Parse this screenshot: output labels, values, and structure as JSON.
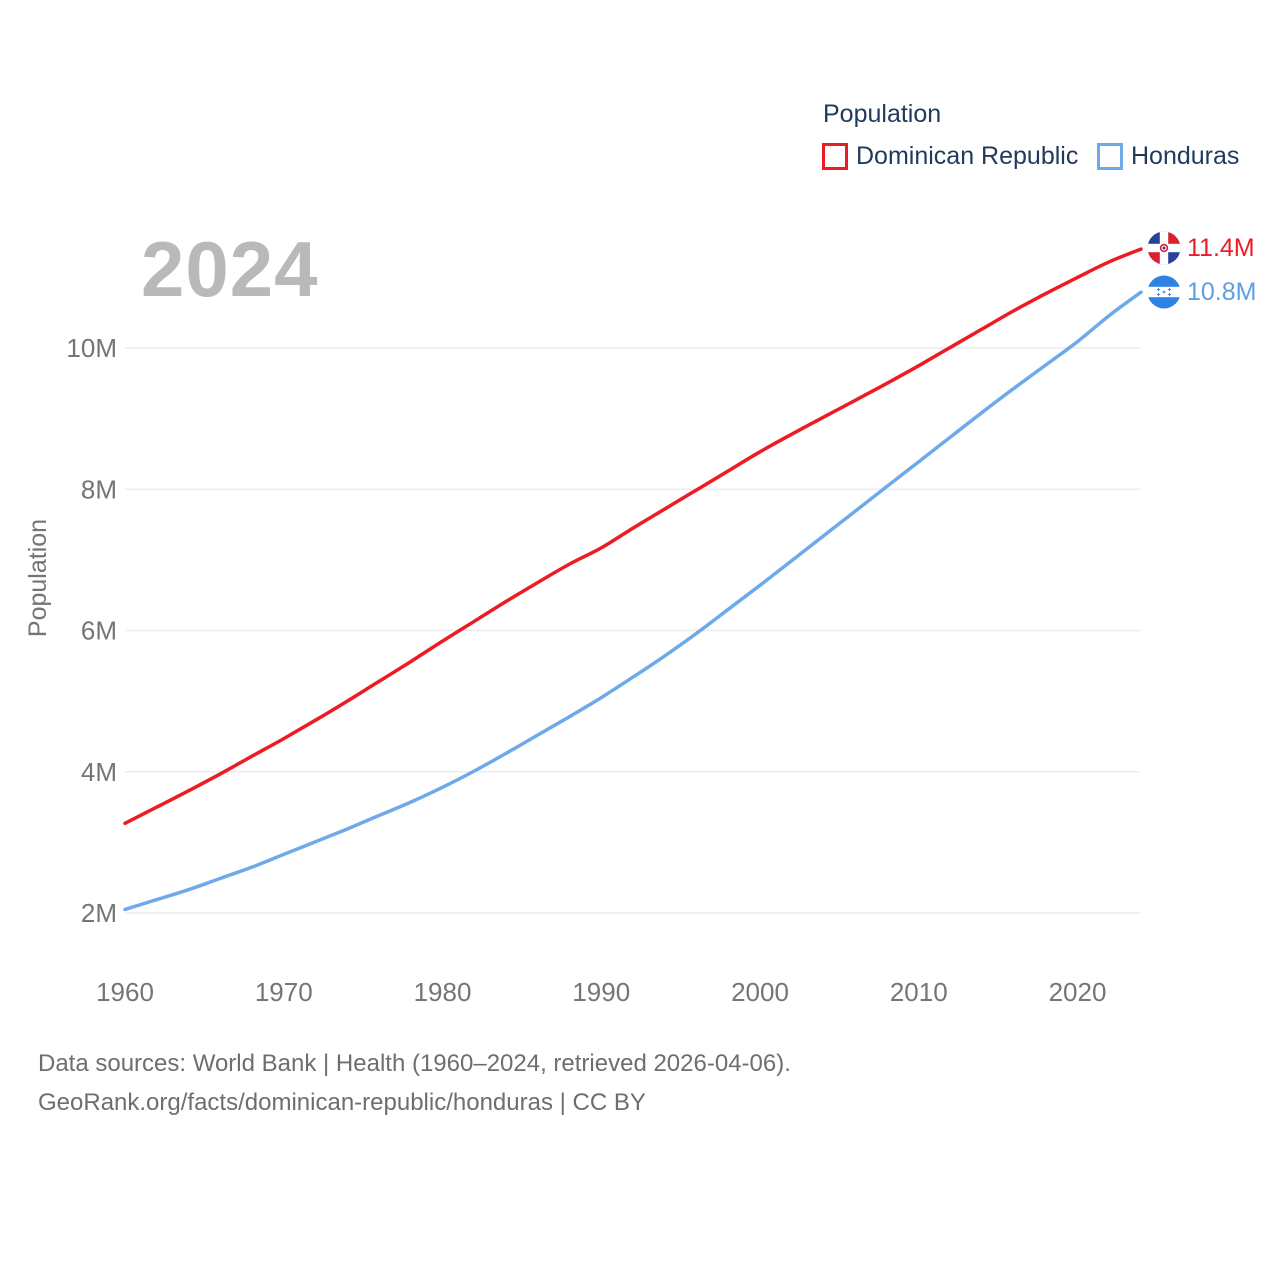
{
  "watermark": "2024",
  "legend": {
    "title": "Population",
    "items": [
      {
        "label": "Dominican Republic",
        "color": "#ed1c24"
      },
      {
        "label": "Honduras",
        "color": "#6ea9ea"
      }
    ]
  },
  "end_labels": [
    {
      "value": "11.4M",
      "color": "#ed1c24",
      "flag": "dominican-republic-flag"
    },
    {
      "value": "10.8M",
      "color": "#5e9fe3",
      "flag": "honduras-flag"
    }
  ],
  "footer": {
    "line1": "Data sources: World Bank | Health (1960–2024, retrieved 2026-04-06).",
    "line2": "GeoRank.org/facts/dominican-republic/honduras | CC BY"
  },
  "chart_data": {
    "type": "line",
    "title": "",
    "xlabel": "",
    "ylabel": "Population",
    "units": "millions",
    "grid": "horizontal",
    "legend_position": "top-right",
    "xlim": [
      1960,
      2024
    ],
    "ylim": [
      2,
      11.6
    ],
    "x_ticks": [
      1960,
      1970,
      1980,
      1990,
      2000,
      2010,
      2020
    ],
    "y_ticks": [
      2,
      4,
      6,
      8,
      10
    ],
    "y_tick_labels": [
      "2M",
      "4M",
      "6M",
      "8M",
      "10M"
    ],
    "x": [
      1960,
      1962,
      1964,
      1966,
      1968,
      1970,
      1972,
      1974,
      1976,
      1978,
      1980,
      1982,
      1984,
      1986,
      1988,
      1990,
      1992,
      1994,
      1996,
      1998,
      2000,
      2002,
      2004,
      2006,
      2008,
      2010,
      2012,
      2014,
      2016,
      2018,
      2020,
      2022,
      2024
    ],
    "series": [
      {
        "name": "Dominican Republic",
        "color": "#ed1c24",
        "end_value": 11.4,
        "values": [
          3.27,
          3.5,
          3.73,
          3.97,
          4.22,
          4.47,
          4.73,
          5.0,
          5.28,
          5.56,
          5.85,
          6.13,
          6.41,
          6.68,
          6.94,
          7.17,
          7.45,
          7.72,
          7.99,
          8.26,
          8.53,
          8.78,
          9.02,
          9.26,
          9.5,
          9.75,
          10.01,
          10.27,
          10.53,
          10.77,
          11.0,
          11.22,
          11.4
        ]
      },
      {
        "name": "Honduras",
        "color": "#6ea9ea",
        "end_value": 10.8,
        "values": [
          2.05,
          2.19,
          2.33,
          2.49,
          2.65,
          2.83,
          3.01,
          3.19,
          3.38,
          3.57,
          3.78,
          4.01,
          4.26,
          4.52,
          4.78,
          5.05,
          5.34,
          5.64,
          5.96,
          6.3,
          6.64,
          6.99,
          7.34,
          7.69,
          8.04,
          8.39,
          8.74,
          9.09,
          9.43,
          9.76,
          10.09,
          10.46,
          10.79
        ]
      }
    ]
  }
}
